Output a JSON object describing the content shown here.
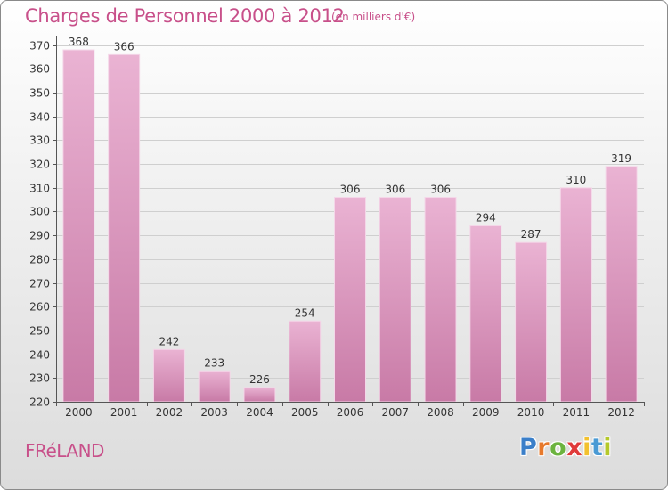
{
  "header": {
    "title": "Charges de Personnel 2000 à 2012",
    "subtitle": "(en milliers d'€)"
  },
  "footer": {
    "place": "FRéLAND",
    "brand": "Proxiti"
  },
  "colors": {
    "accent": "#c8508a",
    "bar_light": "#eab3d3",
    "bar_dark": "#c87aa6"
  },
  "chart_data": {
    "type": "bar",
    "title": "Charges de Personnel 2000 à 2012",
    "subtitle": "(en milliers d'€)",
    "categories": [
      "2000",
      "2001",
      "2002",
      "2003",
      "2004",
      "2005",
      "2006",
      "2007",
      "2008",
      "2009",
      "2010",
      "2011",
      "2012"
    ],
    "values": [
      368,
      366,
      242,
      233,
      226,
      254,
      306,
      306,
      306,
      294,
      287,
      310,
      319
    ],
    "ylim": [
      220,
      370
    ],
    "yticks": [
      220,
      230,
      240,
      250,
      260,
      270,
      280,
      290,
      300,
      310,
      320,
      330,
      340,
      350,
      360,
      370
    ],
    "grid": true,
    "data_labels": true
  }
}
